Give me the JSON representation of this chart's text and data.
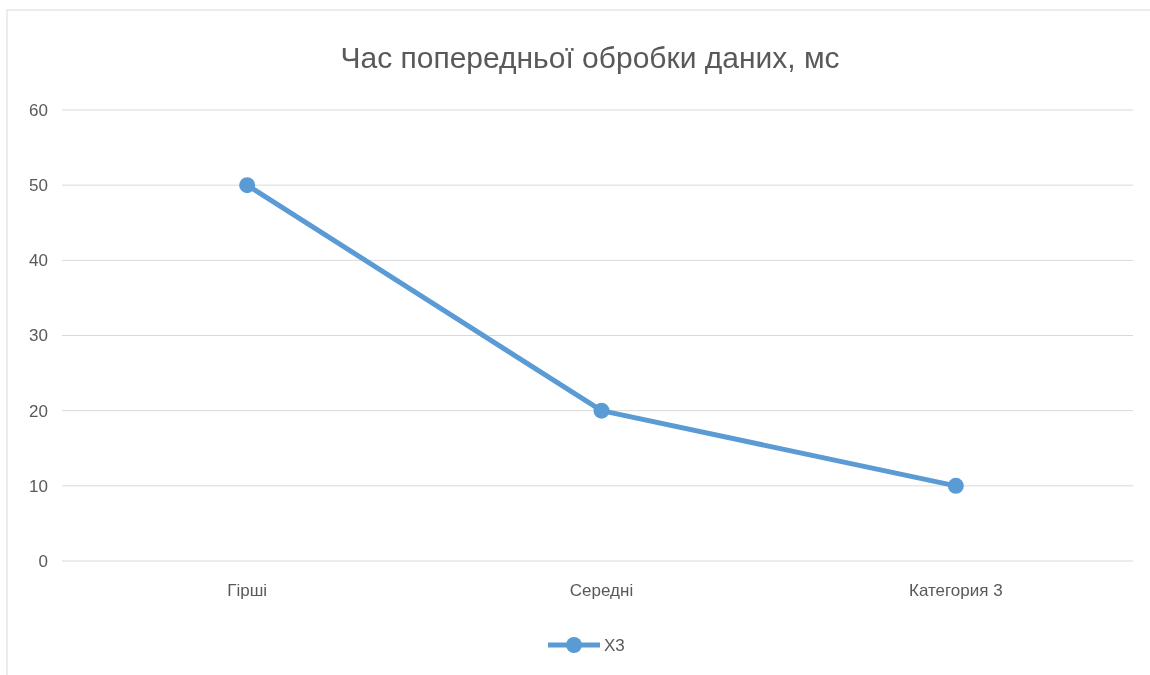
{
  "chart_data": {
    "type": "line",
    "title": "Час попередньої обробки даних, мс",
    "categories": [
      "Гірші",
      "Середні",
      "Категория 3"
    ],
    "series": [
      {
        "name": "X3",
        "color": "#5b9bd5",
        "values": [
          50,
          20,
          10
        ]
      }
    ],
    "ylim": [
      0,
      60
    ],
    "yticks": [
      0,
      10,
      20,
      30,
      40,
      50,
      60
    ],
    "grid": "y",
    "legend": "bottom",
    "marker": "circle"
  }
}
